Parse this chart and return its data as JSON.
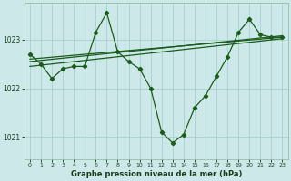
{
  "bg_color": "#cce8e8",
  "grid_color": "#aad0d0",
  "line_color": "#1a5c1a",
  "marker_color": "#1a5c1a",
  "xlabel": "Graphe pression niveau de la mer (hPa)",
  "ylim": [
    1020.55,
    1023.75
  ],
  "xlim": [
    -0.5,
    23.5
  ],
  "yticks": [
    1021,
    1022,
    1023
  ],
  "xticks": [
    0,
    1,
    2,
    3,
    4,
    5,
    6,
    7,
    8,
    9,
    10,
    11,
    12,
    13,
    14,
    15,
    16,
    17,
    18,
    19,
    20,
    21,
    22,
    23
  ],
  "line1_x": [
    0,
    1,
    2,
    3,
    4,
    5,
    6,
    7,
    8,
    9,
    10,
    11,
    12,
    13,
    14,
    15,
    16,
    17,
    18,
    19,
    20,
    21,
    22,
    23
  ],
  "line1_y": [
    1022.7,
    1022.5,
    1022.2,
    1022.4,
    1022.45,
    1022.45,
    1023.15,
    1023.55,
    1022.75,
    1022.55,
    1022.4,
    1022.0,
    1021.1,
    1020.88,
    1021.05,
    1021.6,
    1021.85,
    1022.25,
    1022.65,
    1023.15,
    1023.42,
    1023.1,
    1023.05,
    1023.05
  ],
  "line2_x": [
    0,
    23
  ],
  "line2_y": [
    1022.6,
    1023.05
  ],
  "line3_x": [
    0,
    23
  ],
  "line3_y": [
    1022.55,
    1023.08
  ],
  "line4_x": [
    0,
    23
  ],
  "line4_y": [
    1022.45,
    1023.02
  ]
}
